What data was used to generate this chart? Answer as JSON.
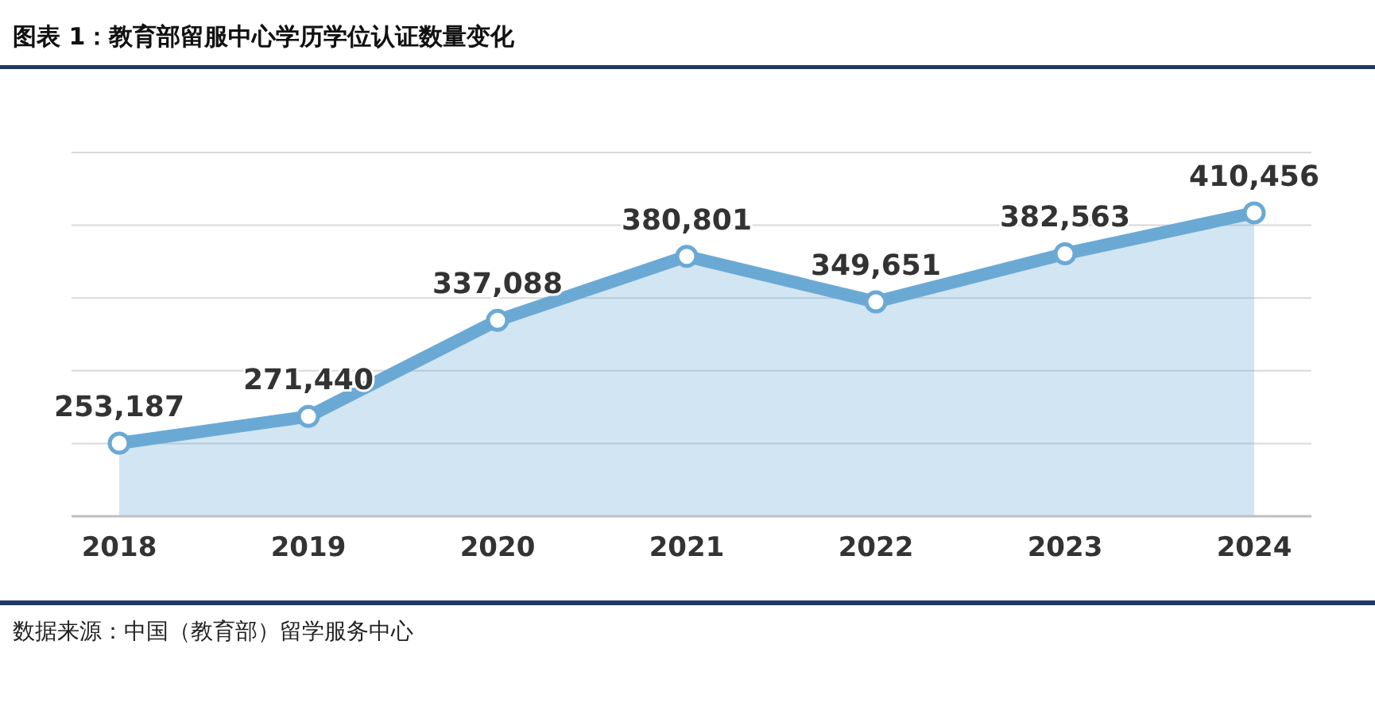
{
  "chart_data": {
    "type": "area",
    "title": "图表 1：教育部留服中心学历学位认证数量变化",
    "categories": [
      "2018",
      "2019",
      "2020",
      "2021",
      "2022",
      "2023",
      "2024"
    ],
    "series": [
      {
        "color": "#6ba9d5",
        "values": [
          253187,
          271440,
          337088,
          380801,
          349651,
          382563,
          410456
        ],
        "value_labels": [
          "253,187",
          "271,440",
          "337,088",
          "380,801",
          "349,651",
          "382,563",
          "410,456"
        ]
      }
    ],
    "tick_labels": "x",
    "grid": "y",
    "marker": "circle",
    "annotations": [
      "数据来源：中国（教育部）留学服务中心"
    ]
  }
}
